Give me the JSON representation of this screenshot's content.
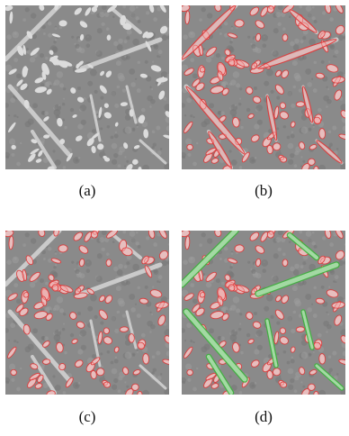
{
  "panels": [
    {
      "id": "a",
      "caption": "(a)",
      "overlay": "none"
    },
    {
      "id": "b",
      "caption": "(b)",
      "overlay": "all-particles"
    },
    {
      "id": "c",
      "caption": "(c)",
      "overlay": "small-particles"
    },
    {
      "id": "d",
      "caption": "(d)",
      "overlay": "small-and-needles"
    }
  ],
  "colors": {
    "particle_outline": "#e03a3a",
    "particle_fill": "#f0a6a6",
    "needle_outline": "#3db23d",
    "needle_fill": "#a8dca8"
  }
}
